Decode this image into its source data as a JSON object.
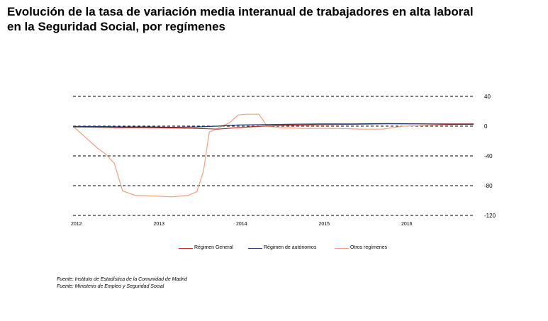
{
  "title": {
    "line1": "Evolución de la tasa de variación media interanual de trabajadores en alta laboral",
    "line2": "en la Seguridad Social, por  regímenes"
  },
  "sources": [
    "Fuente: Instituto de Estadística de la Comunidad de Madrid",
    "Fuente: Ministerio de Empleo y Seguridad Social"
  ],
  "chart_data": {
    "type": "line",
    "x_ticks": [
      "2012",
      "2013",
      "2014",
      "2015",
      "2016"
    ],
    "y_ticks": [
      "40",
      "0",
      "-40",
      "-80",
      "-120"
    ],
    "x_range": [
      2012.0,
      2016.85
    ],
    "ylim": [
      -120,
      40
    ],
    "grid": "dashed horizontal",
    "legend_position": "bottom",
    "series": [
      {
        "name": "Régimen General",
        "color": "#c0282a",
        "x": [
          2012.0,
          2012.3,
          2012.6,
          2012.9,
          2013.2,
          2013.5,
          2013.75,
          2014.0,
          2014.3,
          2014.6,
          2015.0,
          2015.4,
          2015.8,
          2016.2,
          2016.6,
          2016.85
        ],
        "y": [
          -1,
          -1.5,
          -2,
          -2,
          -2.5,
          -3,
          -4,
          -2,
          0,
          1,
          2,
          2.5,
          3,
          3,
          3,
          3
        ]
      },
      {
        "name": "Régimen de autónomos",
        "color": "#1f3a68",
        "x": [
          2012.0,
          2012.3,
          2012.6,
          2012.9,
          2013.2,
          2013.5,
          2013.75,
          2014.0,
          2014.3,
          2014.6,
          2015.0,
          2015.4,
          2015.8,
          2016.2,
          2016.6,
          2016.85
        ],
        "y": [
          -0.5,
          -0.5,
          -1,
          -1,
          -1.5,
          -1,
          0,
          1.5,
          2,
          2.5,
          3,
          3,
          3.5,
          3,
          2.5,
          2.5
        ]
      },
      {
        "name": "Otros regímenes",
        "color": "#f0a080",
        "x": [
          2012.0,
          2012.15,
          2012.3,
          2012.4,
          2012.5,
          2012.6,
          2012.75,
          2013.0,
          2013.2,
          2013.4,
          2013.5,
          2013.58,
          2013.65,
          2013.75,
          2013.9,
          2014.0,
          2014.1,
          2014.25,
          2014.35,
          2014.5,
          2014.8,
          2015.2,
          2015.5,
          2015.75,
          2016.0,
          2016.3,
          2016.6,
          2016.85
        ],
        "y": [
          0,
          -15,
          -30,
          -38,
          -50,
          -87,
          -93,
          -94,
          -95,
          -93,
          -88,
          -60,
          -8,
          -3,
          5,
          15,
          16,
          16,
          0,
          -2,
          -3,
          -3,
          -4,
          -4,
          0,
          1,
          2,
          3
        ]
      }
    ]
  }
}
